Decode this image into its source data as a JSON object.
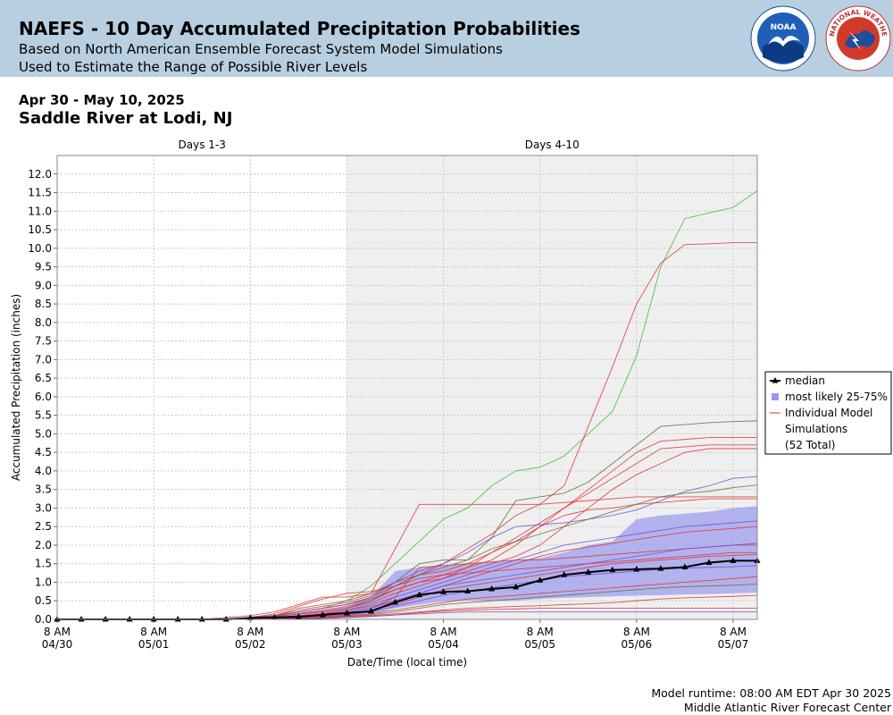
{
  "header": {
    "title": "NAEFS - 10 Day Accumulated Precipitation Probabilities",
    "subtitle1": "Based on North American Ensemble Forecast System Model Simulations",
    "subtitle2": "Used to Estimate the Range of Possible River Levels"
  },
  "logos": {
    "noaa_text": "NOAA",
    "nws_text": "NATIONAL WEATHER SERVICE"
  },
  "date_range": "Apr 30 - May 10, 2025",
  "location": "Saddle River at Lodi, NJ",
  "footer": {
    "runtime": "Model runtime: 08:00 AM EDT Apr 30 2025",
    "center": "Middle Atlantic River Forecast Center"
  },
  "chart_data": {
    "type": "line",
    "xlabel": "Date/Time (local time)",
    "ylabel": "Accumulated Precipitation (inches)",
    "ylim": [
      0,
      12.5
    ],
    "yticks": [
      "0.0",
      "0.5",
      "1.0",
      "1.5",
      "2.0",
      "2.5",
      "3.0",
      "3.5",
      "4.0",
      "4.5",
      "5.0",
      "5.5",
      "6.0",
      "6.5",
      "7.0",
      "7.5",
      "8.0",
      "8.5",
      "9.0",
      "9.5",
      "10.0",
      "10.5",
      "11.0",
      "11.5",
      "12.0"
    ],
    "xlim_hours": [
      0,
      174
    ],
    "xticks": [
      {
        "h": 0,
        "l1": "8 AM",
        "l2": "04/30"
      },
      {
        "h": 24,
        "l1": "8 AM",
        "l2": "05/01"
      },
      {
        "h": 48,
        "l1": "8 AM",
        "l2": "05/02"
      },
      {
        "h": 72,
        "l1": "8 AM",
        "l2": "05/03"
      },
      {
        "h": 96,
        "l1": "8 AM",
        "l2": "05/04"
      },
      {
        "h": 120,
        "l1": "8 AM",
        "l2": "05/05"
      },
      {
        "h": 144,
        "l1": "8 AM",
        "l2": "05/06"
      },
      {
        "h": 168,
        "l1": "8 AM",
        "l2": "05/07"
      }
    ],
    "periods": [
      {
        "label": "Days 1-3",
        "from": 0,
        "to": 72,
        "shaded": false
      },
      {
        "label": "Days 4-10",
        "from": 72,
        "to": 174,
        "shaded": true
      }
    ],
    "grid": true,
    "legend_position": "right",
    "legend": {
      "median": "median",
      "band": "most likely 25-75%",
      "members_line1": "Individual Model",
      "members_line2": "Simulations",
      "members_line3": "(52 Total)"
    },
    "colors": {
      "median": "#000000",
      "band": "#9999ee",
      "member_red": "#e03030",
      "member_green": "#30c030",
      "member_blue": "#6a50d8",
      "member_olive": "#607030",
      "shade": "#efefef"
    },
    "median": {
      "x": [
        0,
        6,
        12,
        18,
        24,
        30,
        36,
        42,
        48,
        54,
        60,
        66,
        72,
        78,
        84,
        90,
        96,
        102,
        108,
        114,
        120,
        126,
        132,
        138,
        144,
        150,
        156,
        162,
        168,
        174
      ],
      "y": [
        0,
        0,
        0,
        0,
        0,
        0,
        0,
        0,
        0.04,
        0.05,
        0.07,
        0.12,
        0.17,
        0.22,
        0.46,
        0.66,
        0.74,
        0.76,
        0.82,
        0.87,
        1.05,
        1.2,
        1.27,
        1.33,
        1.35,
        1.37,
        1.41,
        1.53,
        1.58,
        1.58
      ]
    },
    "band_25_75": {
      "x": [
        48,
        54,
        60,
        66,
        72,
        78,
        84,
        90,
        96,
        102,
        108,
        114,
        120,
        126,
        132,
        138,
        144,
        150,
        156,
        162,
        168,
        174
      ],
      "low": [
        0,
        0,
        0,
        0.02,
        0.05,
        0.12,
        0.3,
        0.4,
        0.48,
        0.5,
        0.5,
        0.5,
        0.55,
        0.58,
        0.6,
        0.62,
        0.64,
        0.65,
        0.67,
        0.68,
        0.7,
        0.72
      ],
      "high": [
        0.08,
        0.12,
        0.18,
        0.25,
        0.35,
        0.6,
        1.3,
        1.4,
        1.45,
        1.5,
        1.55,
        1.6,
        1.65,
        1.8,
        2.0,
        2.1,
        2.7,
        2.8,
        2.85,
        2.9,
        3.0,
        3.05
      ]
    },
    "members": {
      "x": [
        0,
        6,
        12,
        18,
        24,
        30,
        36,
        42,
        48,
        54,
        60,
        66,
        72,
        78,
        84,
        90,
        96,
        102,
        108,
        114,
        120,
        126,
        132,
        138,
        144,
        150,
        156,
        162,
        168,
        174
      ],
      "series": [
        {
          "color": "green",
          "y": [
            0,
            0,
            0,
            0,
            0,
            0,
            0,
            0,
            0.05,
            0.1,
            0.2,
            0.3,
            0.5,
            0.9,
            1.5,
            2.1,
            2.7,
            3.0,
            3.6,
            4.0,
            4.1,
            4.4,
            5.0,
            5.6,
            7.1,
            9.5,
            10.8,
            10.95,
            11.1,
            11.55
          ]
        },
        {
          "color": "red",
          "y": [
            0,
            0,
            0,
            0,
            0,
            0,
            0,
            0,
            0.05,
            0.1,
            0.2,
            0.3,
            0.4,
            0.6,
            0.9,
            1.2,
            1.5,
            1.9,
            2.3,
            2.8,
            3.1,
            3.6,
            5.2,
            6.8,
            8.5,
            9.6,
            10.1,
            10.12,
            10.15,
            10.15
          ]
        },
        {
          "color": "red",
          "y": [
            0,
            0,
            0,
            0,
            0,
            0,
            0,
            0.05,
            0.1,
            0.2,
            0.4,
            0.6,
            0.6,
            0.7,
            1.9,
            3.1,
            3.1,
            3.1,
            3.1,
            3.1,
            3.1,
            3.15,
            3.2,
            3.25,
            3.3,
            3.3,
            3.3,
            3.3,
            3.3,
            3.3
          ]
        },
        {
          "color": "olive",
          "y": [
            0,
            0,
            0,
            0,
            0,
            0,
            0,
            0,
            0.05,
            0.1,
            0.3,
            0.4,
            0.5,
            0.7,
            1.0,
            1.5,
            1.6,
            1.6,
            2.2,
            3.2,
            3.3,
            3.4,
            3.7,
            4.2,
            4.7,
            5.2,
            5.25,
            5.3,
            5.33,
            5.35
          ]
        },
        {
          "color": "red",
          "y": [
            0,
            0,
            0,
            0,
            0,
            0,
            0,
            0,
            0.04,
            0.1,
            0.25,
            0.35,
            0.45,
            0.65,
            1.0,
            1.2,
            1.3,
            1.5,
            1.8,
            2.2,
            2.6,
            3.0,
            3.5,
            4.0,
            4.5,
            4.8,
            4.85,
            4.9,
            4.9,
            4.9
          ]
        },
        {
          "color": "red",
          "y": [
            0,
            0,
            0,
            0,
            0,
            0,
            0,
            0,
            0.03,
            0.1,
            0.2,
            0.3,
            0.4,
            0.55,
            0.8,
            1.0,
            1.2,
            1.4,
            1.6,
            2.0,
            2.5,
            3.0,
            3.4,
            3.8,
            4.2,
            4.6,
            4.65,
            4.7,
            4.7,
            4.7
          ]
        },
        {
          "color": "red",
          "y": [
            0,
            0,
            0,
            0,
            0,
            0,
            0,
            0,
            0.02,
            0.08,
            0.15,
            0.25,
            0.35,
            0.5,
            0.8,
            1.0,
            1.1,
            1.3,
            1.5,
            1.7,
            2.0,
            2.5,
            3.0,
            3.5,
            3.9,
            4.2,
            4.5,
            4.6,
            4.6,
            4.6
          ]
        },
        {
          "color": "blue",
          "y": [
            0,
            0,
            0,
            0,
            0,
            0,
            0,
            0,
            0.05,
            0.1,
            0.2,
            0.3,
            0.4,
            0.6,
            1.0,
            1.3,
            1.5,
            1.8,
            2.2,
            2.5,
            2.55,
            2.6,
            2.7,
            2.8,
            2.95,
            3.2,
            3.45,
            3.6,
            3.8,
            3.85
          ]
        },
        {
          "color": "olive",
          "y": [
            0,
            0,
            0,
            0,
            0,
            0,
            0,
            0,
            0.03,
            0.08,
            0.15,
            0.2,
            0.3,
            0.5,
            0.9,
            1.2,
            1.4,
            1.6,
            1.9,
            2.1,
            2.3,
            2.5,
            2.7,
            2.9,
            3.1,
            3.3,
            3.4,
            3.45,
            3.55,
            3.62
          ]
        },
        {
          "color": "red",
          "y": [
            0,
            0,
            0,
            0,
            0,
            0,
            0,
            0,
            0.03,
            0.08,
            0.15,
            0.2,
            0.3,
            0.45,
            0.7,
            0.9,
            1.1,
            1.4,
            1.8,
            2.1,
            2.5,
            2.8,
            2.95,
            3.0,
            3.1,
            3.15,
            3.2,
            3.25,
            3.25,
            3.25
          ]
        },
        {
          "color": "blue",
          "y": [
            0,
            0,
            0,
            0,
            0,
            0,
            0,
            0,
            0.03,
            0.06,
            0.1,
            0.15,
            0.25,
            0.4,
            0.6,
            0.8,
            1.0,
            1.2,
            1.4,
            1.6,
            1.8,
            2.0,
            2.1,
            2.2,
            2.3,
            2.4,
            2.5,
            2.55,
            2.6,
            2.65
          ]
        },
        {
          "color": "red",
          "y": [
            0,
            0,
            0,
            0,
            0,
            0,
            0,
            0,
            0.02,
            0.05,
            0.1,
            0.15,
            0.25,
            0.35,
            0.5,
            0.7,
            0.9,
            1.1,
            1.3,
            1.5,
            1.7,
            1.85,
            1.95,
            2.05,
            2.15,
            2.25,
            2.35,
            2.4,
            2.45,
            2.5
          ]
        },
        {
          "color": "red",
          "y": [
            0,
            0,
            0,
            0,
            0,
            0,
            0,
            0,
            0.02,
            0.05,
            0.1,
            0.15,
            0.2,
            0.3,
            0.6,
            1.4,
            1.45,
            1.5,
            1.55,
            1.6,
            1.6,
            1.65,
            1.7,
            1.75,
            1.8,
            1.85,
            1.9,
            1.95,
            2.0,
            2.05
          ]
        },
        {
          "color": "blue",
          "y": [
            0,
            0,
            0,
            0,
            0,
            0,
            0,
            0,
            0.02,
            0.04,
            0.08,
            0.12,
            0.2,
            0.3,
            0.5,
            0.7,
            0.9,
            1.0,
            1.1,
            1.2,
            1.3,
            1.4,
            1.5,
            1.6,
            1.7,
            1.8,
            1.9,
            1.95,
            2.0,
            2.0
          ]
        },
        {
          "color": "red",
          "y": [
            0,
            0,
            0,
            0,
            0,
            0,
            0,
            0,
            0.01,
            0.03,
            0.06,
            0.1,
            0.15,
            0.25,
            0.4,
            0.6,
            0.8,
            0.9,
            1.0,
            1.1,
            1.2,
            1.3,
            1.4,
            1.5,
            1.55,
            1.6,
            1.65,
            1.7,
            1.72,
            1.75
          ]
        },
        {
          "color": "blue",
          "y": [
            0,
            0,
            0,
            0,
            0,
            0,
            0,
            0,
            0.01,
            0.03,
            0.05,
            0.08,
            0.12,
            0.2,
            0.35,
            0.5,
            0.65,
            0.75,
            0.85,
            0.95,
            1.05,
            1.15,
            1.2,
            1.25,
            1.3,
            1.35,
            1.38,
            1.4,
            1.42,
            1.45
          ]
        },
        {
          "color": "red",
          "y": [
            0,
            0,
            0,
            0,
            0,
            0,
            0,
            0,
            0.01,
            0.02,
            0.04,
            0.06,
            0.1,
            0.15,
            0.25,
            0.35,
            0.45,
            0.55,
            0.6,
            0.65,
            0.7,
            0.75,
            0.8,
            0.85,
            0.9,
            0.95,
            1.0,
            1.05,
            1.1,
            1.15
          ]
        },
        {
          "color": "olive",
          "y": [
            0,
            0,
            0,
            0,
            0,
            0,
            0,
            0,
            0.01,
            0.02,
            0.03,
            0.05,
            0.08,
            0.12,
            0.2,
            0.3,
            0.4,
            0.45,
            0.5,
            0.55,
            0.6,
            0.65,
            0.7,
            0.75,
            0.8,
            0.85,
            0.88,
            0.9,
            0.92,
            0.95
          ]
        },
        {
          "color": "red",
          "y": [
            0,
            0,
            0,
            0,
            0,
            0,
            0,
            0,
            0.01,
            0.02,
            0.03,
            0.05,
            0.08,
            0.1,
            0.15,
            0.2,
            0.25,
            0.3,
            0.32,
            0.35,
            0.37,
            0.4,
            0.42,
            0.45,
            0.5,
            0.55,
            0.58,
            0.6,
            0.62,
            0.65
          ]
        },
        {
          "color": "red",
          "y": [
            0,
            0,
            0,
            0,
            0,
            0,
            0,
            0,
            0,
            0.01,
            0.02,
            0.03,
            0.05,
            0.08,
            0.12,
            0.18,
            0.22,
            0.25,
            0.27,
            0.28,
            0.3,
            0.3,
            0.3,
            0.3,
            0.3,
            0.3,
            0.3,
            0.3,
            0.3,
            0.3
          ]
        },
        {
          "color": "blue",
          "y": [
            0,
            0,
            0,
            0,
            0,
            0,
            0,
            0,
            0,
            0.01,
            0.02,
            0.03,
            0.05,
            0.08,
            0.12,
            0.15,
            0.18,
            0.2,
            0.2,
            0.2,
            0.2,
            0.2,
            0.2,
            0.2,
            0.2,
            0.2,
            0.2,
            0.2,
            0.2,
            0.2
          ]
        },
        {
          "color": "red",
          "y": [
            0,
            0,
            0,
            0,
            0,
            0,
            0,
            0,
            0.05,
            0.15,
            0.35,
            0.55,
            0.7,
            0.75,
            0.9,
            1.1,
            1.2,
            1.25,
            1.3,
            1.35,
            1.4,
            1.45,
            1.5,
            1.55,
            1.6,
            1.65,
            1.7,
            1.75,
            1.8,
            1.8
          ]
        }
      ]
    }
  }
}
